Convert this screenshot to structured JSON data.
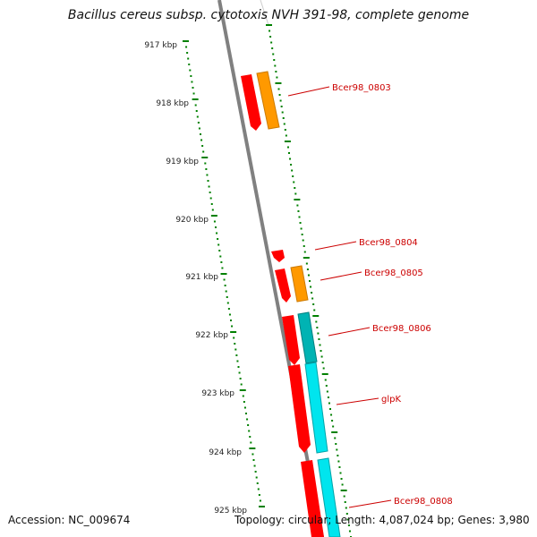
{
  "title": "Bacillus cereus subsp. cytotoxis NVH 391-98, complete genome",
  "accession": "Accession: NC_009674",
  "summary": "Topology: circular; Length: 4,087,024 bp; Genes: 3,980",
  "ruler": {
    "unit": "kbp",
    "ticks": [
      "917 kbp",
      "918 kbp",
      "919 kbp",
      "920 kbp",
      "921 kbp",
      "922 kbp",
      "923 kbp",
      "924 kbp",
      "925 kbp"
    ]
  },
  "genes": [
    {
      "label": "Bcer98_0803"
    },
    {
      "label": "Bcer98_0804"
    },
    {
      "label": "Bcer98_0805"
    },
    {
      "label": "Bcer98_0806"
    },
    {
      "label": "glpK"
    },
    {
      "label": "Bcer98_0808"
    }
  ],
  "colors": {
    "cds": "#ff0000",
    "orange_feature": "#ff9900",
    "cyan_feature": "#00e5ee",
    "teal_feature": "#00b3b3",
    "backbone": "#808080",
    "ruler": "#008000",
    "label": "#cc0000"
  }
}
